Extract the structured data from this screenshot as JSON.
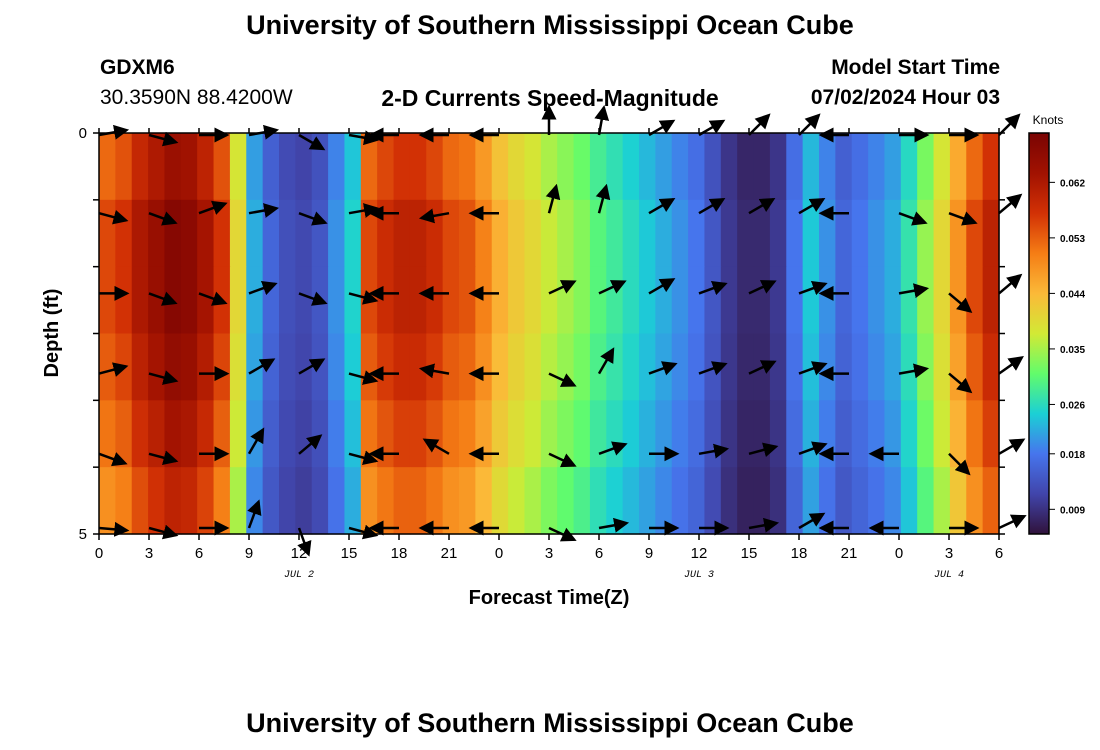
{
  "header": {
    "title_top": "University of Southern Mississippi Ocean Cube",
    "title_bottom": "University of Southern Mississippi Ocean Cube",
    "station": "GDXM6",
    "coords": "30.3590N  88.4200W",
    "subtitle": "2-D Currents Speed-Magnitude",
    "model_start_label": "Model Start Time",
    "model_start_value": "07/02/2024 Hour 03"
  },
  "chart_data": {
    "type": "heatmap",
    "title": "2-D Currents Speed-Magnitude",
    "xlabel": "Forecast Time(Z)",
    "ylabel": "Depth (ft)",
    "x_range_hours": [
      0,
      54
    ],
    "y_range_ft": [
      0,
      5
    ],
    "x_tick_labels": [
      "0",
      "3",
      "6",
      "9",
      "12",
      "15",
      "18",
      "21",
      "0",
      "3",
      "6",
      "9",
      "12",
      "15",
      "18",
      "21",
      "0",
      "3",
      "6"
    ],
    "y_tick_labels": [
      "0",
      "5"
    ],
    "day_labels": [
      {
        "text": "JUL 2",
        "hour": 12
      },
      {
        "text": "JUL 3",
        "hour": 36
      },
      {
        "text": "JUL 4",
        "hour": 51
      }
    ],
    "colorbar": {
      "label": "Knots",
      "min": 0.005,
      "max": 0.07,
      "ticks": [
        "0.009",
        "0.018",
        "0.026",
        "0.035",
        "0.044",
        "0.053",
        "0.062"
      ],
      "tick_values": [
        0.009,
        0.018,
        0.026,
        0.035,
        0.044,
        0.053,
        0.062
      ]
    },
    "speed_by_hour": [
      0.055,
      0.057,
      0.062,
      0.065,
      0.068,
      0.067,
      0.063,
      0.057,
      0.04,
      0.022,
      0.016,
      0.013,
      0.012,
      0.014,
      0.02,
      0.025,
      0.055,
      0.058,
      0.06,
      0.06,
      0.058,
      0.055,
      0.054,
      0.05,
      0.045,
      0.042,
      0.04,
      0.037,
      0.035,
      0.033,
      0.03,
      0.028,
      0.026,
      0.024,
      0.022,
      0.02,
      0.018,
      0.014,
      0.01,
      0.008,
      0.008,
      0.01,
      0.018,
      0.024,
      0.02,
      0.016,
      0.018,
      0.02,
      0.022,
      0.027,
      0.034,
      0.04,
      0.048,
      0.055,
      0.06
    ],
    "depth_factor": [
      0.95,
      1.0,
      1.0,
      0.97,
      0.93,
      0.88
    ],
    "arrow_hours": [
      0,
      3,
      6,
      9,
      12,
      15,
      18,
      21,
      24,
      27,
      30,
      33,
      36,
      39,
      42,
      45,
      48,
      51,
      54
    ],
    "arrow_depth_rows": [
      0,
      1,
      2,
      3,
      4,
      5
    ],
    "arrow_angles_deg": [
      [
        -10,
        15,
        0,
        -15,
        20,
        5
      ],
      [
        15,
        20,
        20,
        15,
        15,
        15
      ],
      [
        0,
        -20,
        20,
        0,
        0,
        0
      ],
      [
        -10,
        -10,
        -20,
        -30,
        -60,
        -70
      ],
      [
        30,
        20,
        20,
        -30,
        -40,
        70
      ],
      [
        10,
        -10,
        15,
        15,
        15,
        15
      ],
      [
        180,
        180,
        180,
        180,
        180,
        180
      ],
      [
        180,
        170,
        180,
        190,
        210,
        180
      ],
      [
        180,
        180,
        180,
        180,
        180,
        180
      ],
      [
        -90,
        -75,
        -25,
        25,
        25,
        25
      ],
      [
        -80,
        -75,
        -25,
        -60,
        -20,
        -10
      ],
      [
        -30,
        -30,
        -30,
        -20,
        0,
        0
      ],
      [
        -30,
        -30,
        -20,
        -20,
        -10,
        0
      ],
      [
        -45,
        -30,
        -25,
        -25,
        -15,
        -10
      ],
      [
        -45,
        -30,
        -20,
        -20,
        -20,
        -30
      ],
      [
        180,
        180,
        180,
        180,
        180,
        180
      ],
      [
        0,
        20,
        -10,
        -10,
        180,
        180
      ],
      [
        0,
        20,
        40,
        40,
        45,
        0
      ],
      [
        -45,
        -40,
        -40,
        -35,
        -30,
        -25
      ]
    ]
  }
}
